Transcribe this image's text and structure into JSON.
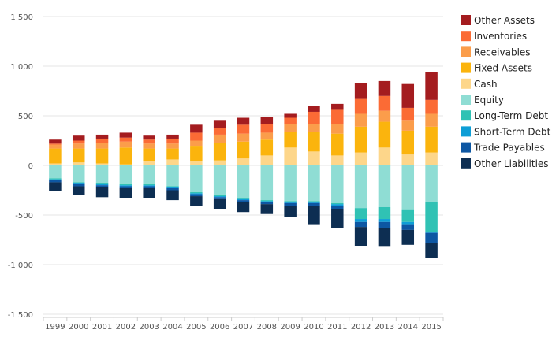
{
  "chart_data": {
    "type": "bar",
    "stacked": true,
    "categories": [
      "1999",
      "2000",
      "2001",
      "2002",
      "2003",
      "2004",
      "2005",
      "2006",
      "2007",
      "2008",
      "2009",
      "2010",
      "2011",
      "2012",
      "2013",
      "2014",
      "2015"
    ],
    "ylim": [
      -1500,
      1500
    ],
    "yticks": [
      -1500,
      -1000,
      -500,
      0,
      500,
      1000,
      1500
    ],
    "ytick_labels": [
      "-1 500",
      "-1 000",
      "-500",
      "0",
      "500",
      "1 000",
      "1 500"
    ],
    "grid": true,
    "legend_position": "right",
    "positive_series": [
      {
        "name": "Cash",
        "color": "#fdd68a",
        "values": [
          20,
          30,
          20,
          10,
          40,
          60,
          40,
          50,
          70,
          100,
          180,
          140,
          100,
          130,
          180,
          110,
          130
        ]
      },
      {
        "name": "Fixed Assets",
        "color": "#fbb40d",
        "values": [
          150,
          140,
          150,
          170,
          130,
          110,
          150,
          180,
          170,
          160,
          160,
          200,
          220,
          260,
          260,
          240,
          260
        ]
      },
      {
        "name": "Receivables",
        "color": "#fb9d4b",
        "values": [
          40,
          50,
          60,
          60,
          50,
          50,
          60,
          80,
          80,
          70,
          80,
          80,
          100,
          130,
          110,
          100,
          130
        ]
      },
      {
        "name": "Inventories",
        "color": "#fb6b35",
        "values": [
          10,
          30,
          40,
          40,
          40,
          50,
          80,
          70,
          90,
          90,
          60,
          120,
          140,
          150,
          150,
          130,
          140
        ]
      },
      {
        "name": "Other Assets",
        "color": "#a41c1f",
        "values": [
          40,
          50,
          40,
          50,
          40,
          40,
          80,
          70,
          70,
          70,
          40,
          60,
          60,
          160,
          150,
          240,
          280
        ]
      }
    ],
    "negative_series": [
      {
        "name": "Equity",
        "color": "#8fddd4",
        "values": [
          -130,
          -170,
          -180,
          -190,
          -190,
          -210,
          -270,
          -300,
          -330,
          -350,
          -360,
          -360,
          -380,
          -430,
          -420,
          -450,
          -370
        ]
      },
      {
        "name": "Long-Term Debt",
        "color": "#30c2b4",
        "values": [
          -10,
          -10,
          -10,
          -10,
          -10,
          -10,
          -10,
          -10,
          -10,
          -10,
          -10,
          -10,
          -10,
          -110,
          -120,
          -120,
          -300
        ]
      },
      {
        "name": "Short-Term Debt",
        "color": "#0e9ed6",
        "values": [
          -10,
          -10,
          -10,
          -10,
          -10,
          -10,
          -10,
          -10,
          -10,
          -10,
          -10,
          -10,
          -20,
          -30,
          -30,
          -30,
          -10
        ]
      },
      {
        "name": "Trade Payables",
        "color": "#0d57a3",
        "values": [
          -20,
          -20,
          -20,
          -20,
          -20,
          -20,
          -20,
          -20,
          -20,
          -20,
          -30,
          -30,
          -30,
          -50,
          -60,
          -50,
          -100
        ]
      },
      {
        "name": "Other Liabilities",
        "color": "#0d2e52",
        "values": [
          -90,
          -90,
          -100,
          -100,
          -100,
          -100,
          -100,
          -100,
          -100,
          -100,
          -110,
          -190,
          -190,
          -190,
          -190,
          -150,
          -150
        ]
      }
    ],
    "legend": [
      {
        "name": "Other Assets",
        "color": "#a41c1f"
      },
      {
        "name": "Inventories",
        "color": "#fb6b35"
      },
      {
        "name": "Receivables",
        "color": "#fb9d4b"
      },
      {
        "name": "Fixed Assets",
        "color": "#fbb40d"
      },
      {
        "name": "Cash",
        "color": "#fdd68a"
      },
      {
        "name": "Equity",
        "color": "#8fddd4"
      },
      {
        "name": "Long-Term Debt",
        "color": "#30c2b4"
      },
      {
        "name": "Short-Term Debt",
        "color": "#0e9ed6"
      },
      {
        "name": "Trade Payables",
        "color": "#0d57a3"
      },
      {
        "name": "Other Liabilities",
        "color": "#0d2e52"
      }
    ]
  }
}
